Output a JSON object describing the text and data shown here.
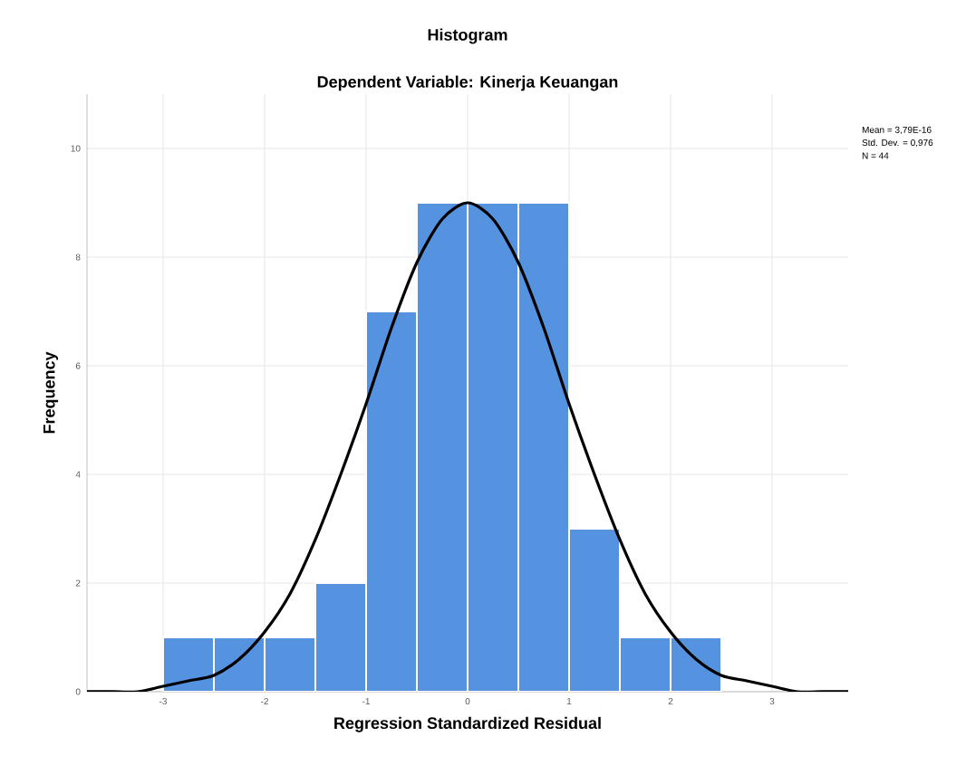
{
  "chart_data": {
    "type": "histogram",
    "title": "Histogram",
    "subtitle": "Dependent Variable: Kinerja Keuangan",
    "xlabel": "Regression Standardized Residual",
    "ylabel": "Frequency",
    "bins": [
      -3,
      -2.5,
      -2,
      -1.5,
      -1,
      -0.5,
      0,
      0.5,
      1,
      1.5,
      2,
      2.5
    ],
    "values": [
      1,
      1,
      1,
      2,
      7,
      9,
      9,
      9,
      3,
      1,
      1
    ],
    "color": "#5592e0",
    "series": [
      {
        "type": "line",
        "color": "#000000",
        "x": [
          -3.75,
          -3.5,
          -3.25,
          -3,
          -2.75,
          -2.5,
          -2.25,
          -2,
          -1.75,
          -1.5,
          -1.25,
          -1,
          -0.75,
          -0.5,
          -0.25,
          0,
          0.25,
          0.5,
          0.75,
          1,
          1.25,
          1.5,
          1.75,
          2,
          2.25,
          2.5,
          2.75,
          3,
          3.25,
          3.5,
          3.75
        ],
        "values": [
          0,
          0,
          0,
          0.1,
          0.2,
          0.3,
          0.6,
          1.1,
          1.8,
          2.8,
          4,
          5.3,
          6.7,
          7.9,
          8.7,
          9,
          8.7,
          7.9,
          6.7,
          5.3,
          4,
          2.8,
          1.8,
          1.1,
          0.6,
          0.3,
          0.2,
          0.1,
          0,
          0,
          0
        ]
      }
    ],
    "xlim": [
      -3.75,
      3.75
    ],
    "ylim": [
      0,
      11
    ],
    "xticks": [
      -3,
      -2,
      -1,
      0,
      1,
      2,
      3
    ],
    "yticks": [
      0,
      2,
      4,
      6,
      8,
      10
    ],
    "grid": true,
    "annotations": [
      "Mean = 3,79E-16",
      "Std. Dev. = 0,976",
      "N = 44"
    ]
  }
}
